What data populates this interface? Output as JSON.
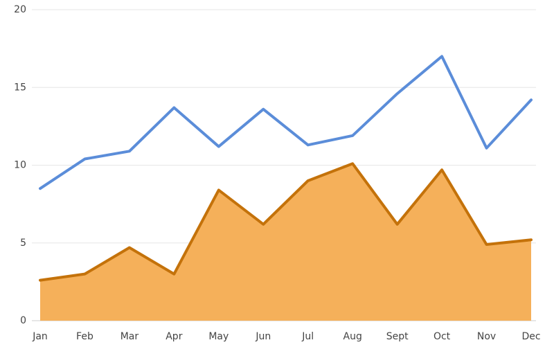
{
  "chart_data": {
    "type": "line",
    "categories": [
      "Jan",
      "Feb",
      "Mar",
      "Apr",
      "May",
      "Jun",
      "Jul",
      "Aug",
      "Sept",
      "Oct",
      "Nov",
      "Dec"
    ],
    "series": [
      {
        "type": "line",
        "color": "#5b8dd9",
        "values": [
          8.5,
          10.4,
          10.9,
          13.7,
          11.2,
          13.6,
          11.3,
          11.9,
          14.6,
          17.0,
          11.1,
          14.2
        ]
      },
      {
        "type": "area",
        "color": "#c4720a",
        "fill": "#f5b05a",
        "values": [
          2.6,
          3.0,
          4.7,
          3.0,
          8.4,
          6.2,
          9.0,
          10.1,
          6.2,
          9.7,
          4.9,
          5.2
        ]
      }
    ],
    "yticks": [
      0,
      5,
      10,
      15,
      20
    ],
    "ylim": [
      0,
      20
    ],
    "grid": true,
    "legend": "none"
  }
}
